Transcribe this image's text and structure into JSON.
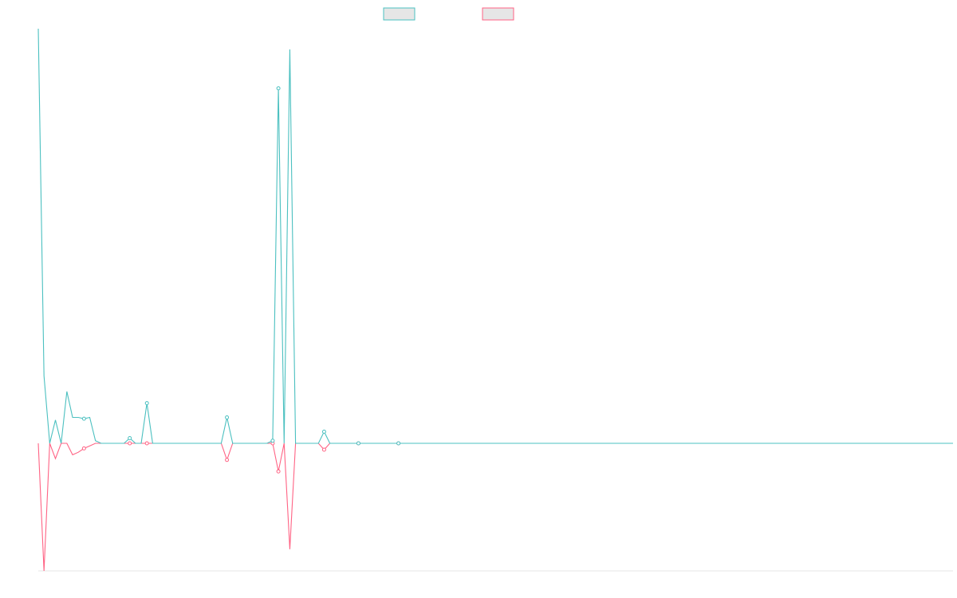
{
  "chart_data": {
    "type": "line",
    "title": "",
    "xlabel": "",
    "ylabel": "",
    "legend_position": "top-center",
    "grid": false,
    "x_count": 161,
    "ylim": [
      -1.0,
      3.2
    ],
    "series": [
      {
        "color": "#4bc0c0",
        "legend_fill": "#e6e6e6",
        "point_indices": [
          8,
          16,
          19,
          33,
          41,
          42,
          50,
          56,
          63
        ],
        "values": [
          3.2,
          0.52,
          0,
          0.18,
          0,
          0.4,
          0.2,
          0.2,
          0.19,
          0.2,
          0.02,
          0,
          0,
          0,
          0,
          0,
          0.04,
          0,
          0,
          0.31,
          0,
          0,
          0,
          0,
          0,
          0,
          0,
          0,
          0,
          0,
          0,
          0,
          0,
          0.2,
          0,
          0,
          0,
          0,
          0,
          0,
          0,
          0.02,
          2.74,
          0,
          3.04,
          0,
          0,
          0,
          0,
          0,
          0.09,
          0,
          0,
          0,
          0,
          0,
          0,
          0,
          0,
          0,
          0,
          0,
          0,
          0,
          0,
          0,
          0,
          0,
          0,
          0,
          0,
          0,
          0,
          0,
          0,
          0,
          0,
          0,
          0,
          0,
          0,
          0,
          0,
          0,
          0,
          0,
          0,
          0,
          0,
          0,
          0,
          0,
          0,
          0,
          0,
          0,
          0,
          0,
          0,
          0,
          0,
          0,
          0,
          0,
          0,
          0,
          0,
          0,
          0,
          0,
          0,
          0,
          0,
          0,
          0,
          0,
          0,
          0,
          0,
          0,
          0,
          0,
          0,
          0,
          0,
          0,
          0,
          0,
          0,
          0,
          0,
          0,
          0,
          0,
          0,
          0,
          0,
          0,
          0,
          0,
          0,
          0,
          0,
          0,
          0,
          0,
          0,
          0,
          0,
          0,
          0,
          0,
          0,
          0,
          0,
          0,
          0,
          0,
          0,
          0,
          0
        ]
      },
      {
        "color": "#ff6384",
        "legend_fill": "#e6e6e6",
        "point_indices": [
          8,
          16,
          19,
          33,
          41,
          42,
          50,
          56,
          63
        ],
        "values": [
          0,
          -1.0,
          0,
          -0.12,
          0,
          0,
          -0.09,
          -0.07,
          -0.04,
          -0.02,
          0,
          0,
          0,
          0,
          0,
          0,
          0,
          0,
          0,
          0,
          0,
          0,
          0,
          0,
          0,
          0,
          0,
          0,
          0,
          0,
          0,
          0,
          0,
          -0.13,
          0,
          0,
          0,
          0,
          0,
          0,
          0,
          0,
          -0.22,
          0,
          -0.83,
          0,
          0,
          0,
          0,
          0,
          -0.05,
          0,
          0,
          0,
          0,
          0,
          0,
          0,
          0,
          0,
          0,
          0,
          0,
          0,
          0,
          0,
          0,
          0,
          0,
          0,
          0,
          0,
          0,
          0,
          0,
          0,
          0,
          0,
          0,
          0,
          0,
          0,
          0,
          0,
          0,
          0,
          0,
          0,
          0,
          0,
          0,
          0,
          0,
          0,
          0,
          0,
          0,
          0,
          0,
          0,
          0,
          0,
          0,
          0,
          0,
          0,
          0,
          0,
          0,
          0,
          0,
          0,
          0,
          0,
          0,
          0,
          0,
          0,
          0,
          0,
          0,
          0,
          0,
          0,
          0,
          0,
          0,
          0,
          0,
          0,
          0,
          0,
          0,
          0,
          0,
          0,
          0,
          0,
          0,
          0,
          0,
          0,
          0,
          0,
          0,
          0,
          0,
          0,
          0,
          0,
          0,
          0,
          0,
          0,
          0,
          0,
          0,
          0,
          0,
          0,
          0
        ]
      }
    ]
  }
}
